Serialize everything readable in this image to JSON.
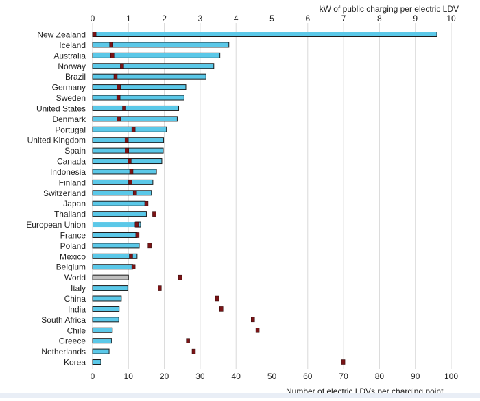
{
  "chart_data": {
    "type": "bar",
    "orientation": "horizontal",
    "top_axis": {
      "label": "kW of public charging per electric LDV",
      "range": [
        0,
        10
      ],
      "ticks": [
        "0",
        "1",
        "2",
        "3",
        "4",
        "5",
        "6",
        "7",
        "8",
        "9",
        "10"
      ]
    },
    "bottom_axis": {
      "label": "Number of electric LDVs per charging point",
      "range": [
        0,
        100
      ],
      "ticks": [
        "0",
        "10",
        "20",
        "30",
        "40",
        "50",
        "60",
        "70",
        "80",
        "90",
        "100"
      ]
    },
    "gridlines": true,
    "series": [
      {
        "name": "kW of public charging per electric LDV",
        "kind": "bar",
        "axis": "top"
      },
      {
        "name": "Number of electric LDVs per charging point",
        "kind": "marker",
        "axis": "bottom"
      }
    ],
    "categories": [
      {
        "label": "New Zealand",
        "kw": 9.6,
        "evs": 0.5,
        "style": "normal"
      },
      {
        "label": "Iceland",
        "kw": 3.8,
        "evs": 5.2,
        "style": "normal"
      },
      {
        "label": "Australia",
        "kw": 3.55,
        "evs": 5.5,
        "style": "normal"
      },
      {
        "label": "Norway",
        "kw": 3.38,
        "evs": 8.2,
        "style": "normal"
      },
      {
        "label": "Brazil",
        "kw": 3.16,
        "evs": 6.4,
        "style": "normal"
      },
      {
        "label": "Germany",
        "kw": 2.6,
        "evs": 7.3,
        "style": "normal"
      },
      {
        "label": "Sweden",
        "kw": 2.55,
        "evs": 7.2,
        "style": "normal"
      },
      {
        "label": "United States",
        "kw": 2.4,
        "evs": 8.8,
        "style": "normal"
      },
      {
        "label": "Denmark",
        "kw": 2.36,
        "evs": 7.3,
        "style": "normal"
      },
      {
        "label": "Portugal",
        "kw": 2.06,
        "evs": 11.4,
        "style": "normal"
      },
      {
        "label": "United Kingdom",
        "kw": 1.98,
        "evs": 9.5,
        "style": "normal"
      },
      {
        "label": "Spain",
        "kw": 1.97,
        "evs": 9.6,
        "style": "normal"
      },
      {
        "label": "Canada",
        "kw": 1.93,
        "evs": 10.3,
        "style": "normal"
      },
      {
        "label": "Indonesia",
        "kw": 1.78,
        "evs": 10.8,
        "style": "normal"
      },
      {
        "label": "Finland",
        "kw": 1.68,
        "evs": 10.5,
        "style": "normal"
      },
      {
        "label": "Switzerland",
        "kw": 1.64,
        "evs": 11.8,
        "style": "normal"
      },
      {
        "label": "Japan",
        "kw": 1.47,
        "evs": 15.0,
        "style": "normal"
      },
      {
        "label": "Thailand",
        "kw": 1.5,
        "evs": 17.2,
        "style": "normal"
      },
      {
        "label": "European Union",
        "kw": 1.34,
        "evs": 12.3,
        "style": "highlight"
      },
      {
        "label": "France",
        "kw": 1.24,
        "evs": 12.5,
        "style": "normal"
      },
      {
        "label": "Poland",
        "kw": 1.3,
        "evs": 15.9,
        "style": "normal"
      },
      {
        "label": "Mexico",
        "kw": 1.24,
        "evs": 10.7,
        "style": "normal"
      },
      {
        "label": "Belgium",
        "kw": 1.12,
        "evs": 11.4,
        "style": "normal"
      },
      {
        "label": "World",
        "kw": 1.0,
        "evs": 24.4,
        "style": "world"
      },
      {
        "label": "Italy",
        "kw": 0.98,
        "evs": 18.7,
        "style": "normal"
      },
      {
        "label": "China",
        "kw": 0.8,
        "evs": 34.7,
        "style": "normal"
      },
      {
        "label": "India",
        "kw": 0.74,
        "evs": 35.9,
        "style": "normal"
      },
      {
        "label": "South Africa",
        "kw": 0.73,
        "evs": 44.7,
        "style": "normal"
      },
      {
        "label": "Chile",
        "kw": 0.55,
        "evs": 46.0,
        "style": "normal"
      },
      {
        "label": "Greece",
        "kw": 0.53,
        "evs": 26.6,
        "style": "normal"
      },
      {
        "label": "Netherlands",
        "kw": 0.46,
        "evs": 28.2,
        "style": "normal"
      },
      {
        "label": "Korea",
        "kw": 0.23,
        "evs": 69.9,
        "style": "normal"
      }
    ],
    "colors": {
      "bar": "#5bc8e8",
      "bar_highlight": "#5bc8e8",
      "bar_world": "#bfbfbf",
      "marker": "#7a1416",
      "grid": "#d9d9d9"
    }
  }
}
